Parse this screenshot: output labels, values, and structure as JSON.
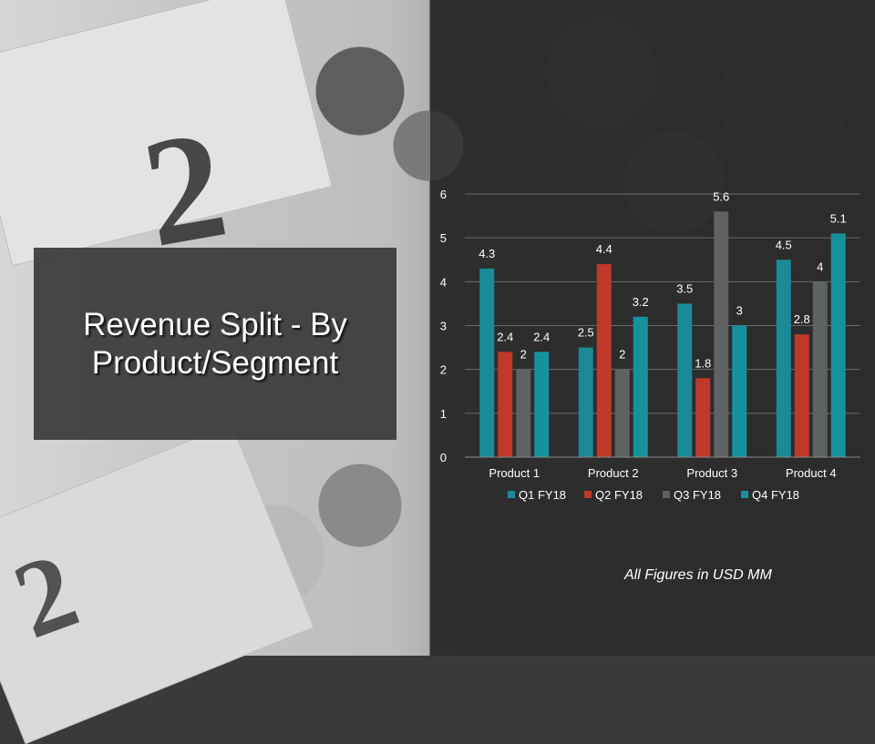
{
  "slide": {
    "title": "Revenue Split - By Product/Segment",
    "footnote": "All Figures in USD MM"
  },
  "colors": {
    "q1": "#1a8a97",
    "q2": "#c0392b",
    "q3": "#5f6163",
    "q4": "#16929f",
    "axis_text": "#ffffff",
    "grid": "#6a6a6a"
  },
  "chart_data": {
    "type": "bar",
    "categories": [
      "Product 1",
      "Product 2",
      "Product 3",
      "Product 4"
    ],
    "series": [
      {
        "name": "Q1 FY18",
        "values": [
          4.3,
          2.5,
          3.5,
          4.5
        ]
      },
      {
        "name": "Q2 FY18",
        "values": [
          2.4,
          4.4,
          1.8,
          2.8
        ]
      },
      {
        "name": "Q3 FY18",
        "values": [
          2,
          2,
          5.6,
          4
        ]
      },
      {
        "name": "Q4 FY18",
        "values": [
          2.4,
          3.2,
          3,
          5.1
        ]
      }
    ],
    "ylim": [
      0,
      6
    ],
    "yticks": [
      "0",
      "1",
      "2",
      "3",
      "4",
      "5",
      "6"
    ],
    "grid": true,
    "legend": "bottom",
    "data_labels": true
  }
}
